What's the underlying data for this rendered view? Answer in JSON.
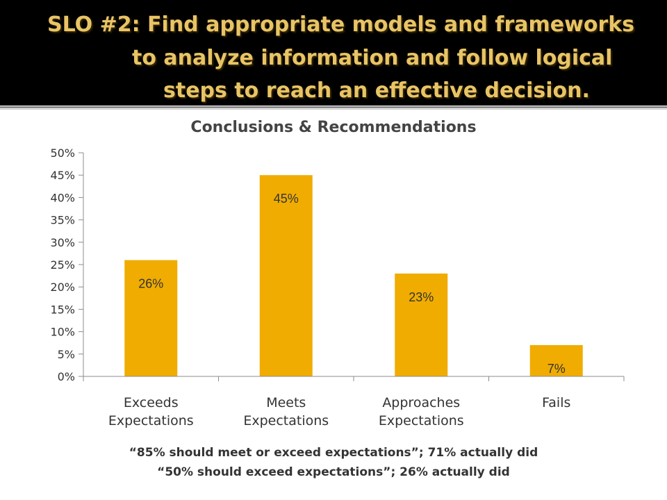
{
  "slide": {
    "title_lines": [
      "SLO #2: Find appropriate models and frameworks",
      "to analyze information and follow logical",
      "steps to reach an effective decision."
    ],
    "notes": [
      "“85% should meet or exceed expectations”; 71% actually did",
      "“50% should exceed expectations”; 26% actually did"
    ],
    "colors": {
      "bar": "#f0ac00",
      "header_bg": "#000000",
      "title_text": "#e8c466"
    }
  },
  "chart_data": {
    "type": "bar",
    "title": "Conclusions & Recommendations",
    "categories": [
      [
        "Exceeds",
        "Expectations"
      ],
      [
        "Meets",
        "Expectations"
      ],
      [
        "Approaches",
        "Expectations"
      ],
      [
        "Fails"
      ]
    ],
    "values": [
      26,
      45,
      23,
      7
    ],
    "data_labels": [
      "26%",
      "45%",
      "23%",
      "7%"
    ],
    "ylim": [
      0,
      50
    ],
    "yticks": [
      0,
      5,
      10,
      15,
      20,
      25,
      30,
      35,
      40,
      45,
      50
    ],
    "ytick_labels": [
      "0%",
      "5%",
      "10%",
      "15%",
      "20%",
      "25%",
      "30%",
      "35%",
      "40%",
      "45%",
      "50%"
    ],
    "grid": false,
    "legend": "none"
  }
}
